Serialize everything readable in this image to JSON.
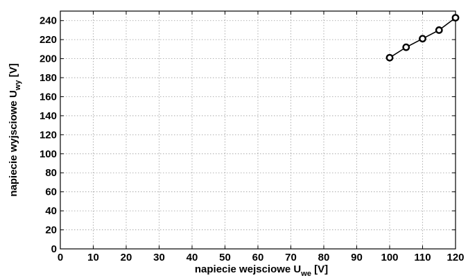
{
  "chart_data": {
    "type": "line",
    "title": "",
    "xlabel": {
      "text": "napiecie wejsciowe U",
      "subscript": "we",
      "unit": " [V]"
    },
    "ylabel": {
      "text": "napiecie wyjsciowe U",
      "subscript": "wy",
      "unit": " [V]"
    },
    "xlim": [
      0,
      120
    ],
    "ylim": [
      0,
      250
    ],
    "xticks": [
      0,
      10,
      20,
      30,
      40,
      50,
      60,
      70,
      80,
      90,
      100,
      110,
      120
    ],
    "yticks": [
      0,
      20,
      40,
      60,
      80,
      100,
      120,
      140,
      160,
      180,
      200,
      220,
      240
    ],
    "grid": true,
    "legend": "none",
    "series": [
      {
        "x": [
          100,
          105,
          110,
          115,
          120
        ],
        "y": [
          201,
          212,
          221,
          230,
          243
        ],
        "marker": "circle",
        "color": "#000000"
      }
    ]
  }
}
